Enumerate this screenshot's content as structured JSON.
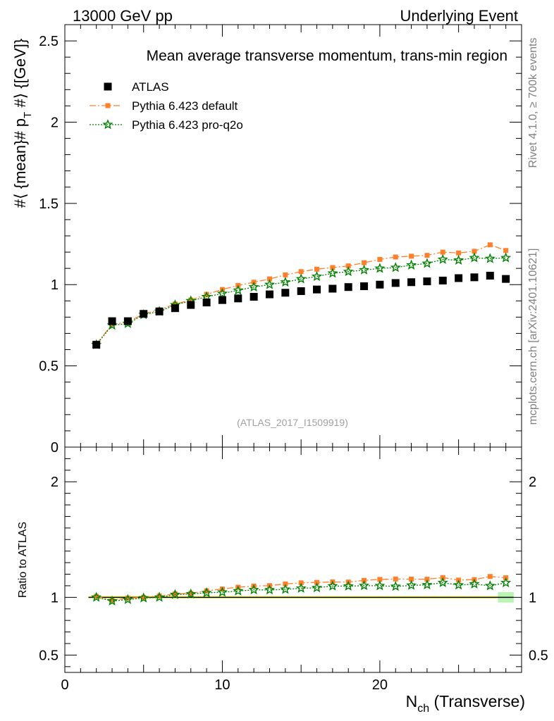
{
  "header": {
    "left": "13000 GeV pp",
    "right": "Underlying Event"
  },
  "side_labels": {
    "rivet": "Rivet 4.1.0, ≥ 700k events",
    "mcplots": "mcplots.cern.ch [arXiv:2401.10621]"
  },
  "chart_data": {
    "type": "scatter",
    "title": "Mean average transverse momentum, trans-min region",
    "watermark": "(ATLAS_2017_I1509919)",
    "xlabel": "N_ch (Transverse)",
    "xlabel_main": "N",
    "xlabel_sub": "ch",
    "xlabel_rest": " (Transverse)",
    "ylabel": "#langle {mean}# p_T #rangle [GeV]",
    "ylabel_part1": "#⟨ {mean}# p",
    "ylabel_sub": "T",
    "ylabel_part2": " #⟩ {[GeV]}",
    "ratio_ylabel": "Ratio to ATLAS",
    "xlim": [
      0,
      29
    ],
    "ylim": [
      0,
      2.6
    ],
    "ratio_ylim": [
      0.35,
      2.3
    ],
    "xticks": [
      0,
      10,
      20
    ],
    "xtick_labels": [
      "0",
      "10",
      "20"
    ],
    "yticks": [
      0,
      0.5,
      1,
      1.5,
      2,
      2.5
    ],
    "ytick_labels": [
      "0",
      "0.5",
      "1",
      "1.5",
      "2",
      "2.5"
    ],
    "ratio_yticks": [
      0.5,
      1,
      2
    ],
    "ratio_ytick_labels": [
      "0.5",
      "1",
      "2"
    ],
    "x": [
      2,
      3,
      4,
      5,
      6,
      7,
      8,
      9,
      10,
      11,
      12,
      13,
      14,
      15,
      16,
      17,
      18,
      19,
      20,
      21,
      22,
      23,
      24,
      25,
      26,
      27,
      28
    ],
    "series": [
      {
        "name": "ATLAS",
        "color": "#000000",
        "marker": "square",
        "values": [
          0.63,
          0.775,
          0.775,
          0.82,
          0.835,
          0.855,
          0.875,
          0.89,
          0.905,
          0.915,
          0.925,
          0.94,
          0.95,
          0.96,
          0.97,
          0.975,
          0.985,
          0.99,
          1.0,
          1.01,
          1.015,
          1.02,
          1.025,
          1.04,
          1.045,
          1.055,
          1.035
        ]
      },
      {
        "name": "Pythia 6.423 default",
        "color": "#ff7f2a",
        "marker": "square-small",
        "values": [
          0.635,
          0.755,
          0.77,
          0.82,
          0.845,
          0.88,
          0.905,
          0.94,
          0.97,
          0.995,
          1.015,
          1.035,
          1.06,
          1.08,
          1.095,
          1.105,
          1.115,
          1.135,
          1.155,
          1.17,
          1.175,
          1.18,
          1.2,
          1.195,
          1.205,
          1.245,
          1.21
        ]
      },
      {
        "name": "Pythia 6.423 pro-q2o",
        "color": "#008000",
        "marker": "star",
        "values": [
          0.63,
          0.75,
          0.76,
          0.815,
          0.835,
          0.875,
          0.9,
          0.925,
          0.945,
          0.965,
          0.985,
          1.0,
          1.015,
          1.035,
          1.05,
          1.07,
          1.08,
          1.09,
          1.1,
          1.105,
          1.12,
          1.13,
          1.155,
          1.15,
          1.165,
          1.16,
          1.165
        ]
      }
    ]
  }
}
